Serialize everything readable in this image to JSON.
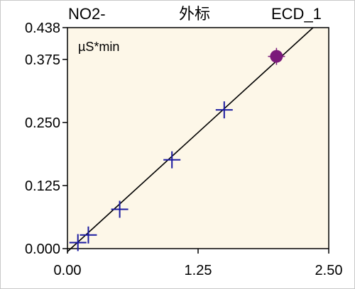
{
  "header": {
    "left": "NO2-",
    "center": "外标",
    "right": "ECD_1"
  },
  "chart_data": {
    "type": "scatter",
    "unit_label": "µS*min",
    "xlim": [
      0.0,
      2.5
    ],
    "ylim": [
      0.0,
      0.438
    ],
    "x_ticks": [
      "0.00",
      "1.25",
      "2.50"
    ],
    "y_ticks": [
      "0.000",
      "0.125",
      "0.250",
      "0.375",
      "0.438"
    ],
    "series": [
      {
        "marker": "plus",
        "color": "#1a1aa0",
        "points": [
          {
            "x": 0.1,
            "y": 0.012
          },
          {
            "x": 0.2,
            "y": 0.027
          },
          {
            "x": 0.5,
            "y": 0.078
          },
          {
            "x": 1.0,
            "y": 0.176
          },
          {
            "x": 1.5,
            "y": 0.275
          }
        ]
      },
      {
        "marker": "filled-circle",
        "color": "#7a1a7a",
        "points": [
          {
            "x": 2.0,
            "y": 0.381
          }
        ]
      }
    ],
    "fit_line": {
      "color": "#000000",
      "points": [
        {
          "x": 0.0,
          "y": -0.006
        },
        {
          "x": 2.35,
          "y": 0.438
        }
      ]
    },
    "plot_background": "#fdf7e8",
    "grid": false
  }
}
